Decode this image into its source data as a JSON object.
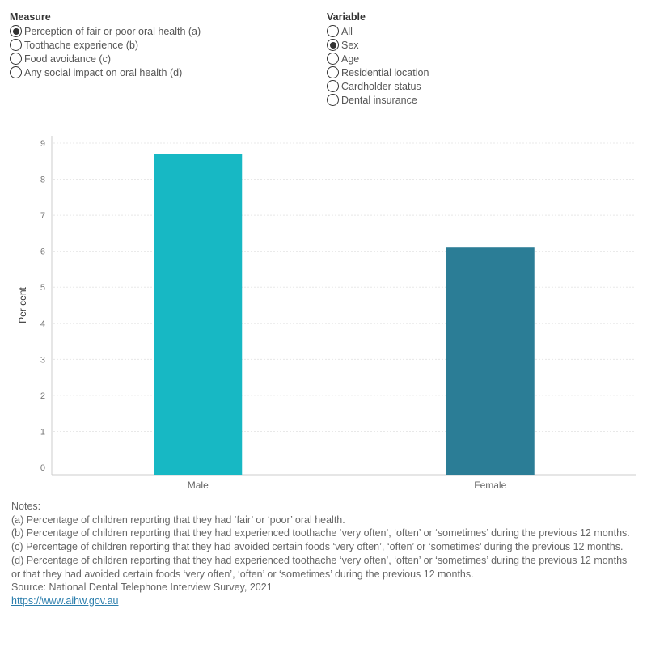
{
  "measure": {
    "title": "Measure",
    "options": [
      {
        "label": "Perception of fair or poor oral health (a)",
        "selected": true
      },
      {
        "label": "Toothache experience (b)",
        "selected": false
      },
      {
        "label": "Food avoidance (c)",
        "selected": false
      },
      {
        "label": "Any social impact on oral health (d)",
        "selected": false
      }
    ]
  },
  "variable": {
    "title": "Variable",
    "options": [
      {
        "label": "All",
        "selected": false
      },
      {
        "label": "Sex",
        "selected": true
      },
      {
        "label": "Age",
        "selected": false
      },
      {
        "label": "Residential location",
        "selected": false
      },
      {
        "label": "Cardholder status",
        "selected": false
      },
      {
        "label": "Dental insurance",
        "selected": false
      }
    ]
  },
  "chart_data": {
    "type": "bar",
    "categories": [
      "Male",
      "Female"
    ],
    "values": [
      8.7,
      6.1
    ],
    "colors": [
      "#17b8c4",
      "#2b7d96"
    ],
    "title": "",
    "xlabel": "",
    "ylabel": "Per cent",
    "ylim": [
      0,
      9
    ],
    "yticks": [
      "0",
      "1",
      "2",
      "3",
      "4",
      "5",
      "6",
      "7",
      "8",
      "9"
    ],
    "grid": true
  },
  "notes": {
    "heading": "Notes:",
    "a": "(a) Percentage of children reporting that they had ‘fair’ or ‘poor’ oral health.",
    "b": "(b) Percentage of children reporting that they had experienced toothache ‘very often’, ‘often’ or ‘sometimes’ during the previous 12 months.",
    "c": "(c) Percentage of children reporting that they had avoided certain foods ‘very often’, ‘often’ or ‘sometimes’ during the previous 12 months.",
    "d": "(d) Percentage of children reporting that they had experienced toothache ‘very often’, ‘often’ or ‘sometimes’ during the previous 12 months or that they had avoided certain foods ‘very often’, ‘often’ or ‘sometimes’ during the previous 12 months.",
    "source": "Source: National Dental Telephone Interview Survey, 2021",
    "link": "https://www.aihw.gov.au"
  }
}
